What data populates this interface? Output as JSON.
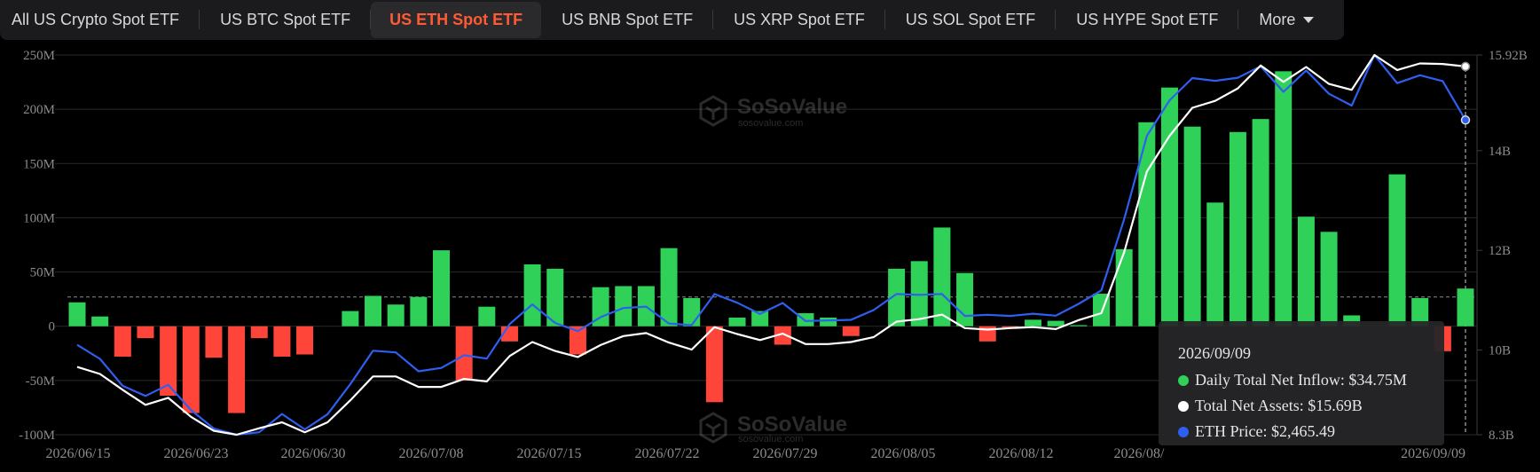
{
  "tabs": [
    {
      "label": "All US Crypto Spot ETF"
    },
    {
      "label": "US BTC Spot ETF"
    },
    {
      "label": "US ETH Spot ETF",
      "active": true
    },
    {
      "label": "US BNB Spot ETF"
    },
    {
      "label": "US XRP Spot ETF"
    },
    {
      "label": "US SOL Spot ETF"
    },
    {
      "label": "US HYPE Spot ETF"
    },
    {
      "label": "More",
      "icon": "chevron-down-icon"
    }
  ],
  "watermark": {
    "brand": "SoSoValue",
    "url": "sosovalue.com"
  },
  "colors": {
    "inflow": "#2fd159",
    "outflow": "#ff453a",
    "assets": "#ffffff",
    "price": "#2f5ff0"
  },
  "tooltip": {
    "date": "2026/09/09",
    "rows": [
      {
        "label": "Daily Total Net Inflow: $34.75M",
        "color": "#2fd159"
      },
      {
        "label": "Total Net Assets: $15.69B",
        "color": "#ffffff"
      },
      {
        "label": "ETH Price: $2,465.49",
        "color": "#2f5ff0"
      }
    ]
  },
  "chart_data": {
    "type": "bar",
    "x_tick_labels": [
      "2026/06/15",
      "2026/06/23",
      "2026/06/30",
      "2026/07/08",
      "2026/07/15",
      "2026/07/22",
      "2026/07/29",
      "2026/08/05",
      "2026/08/12",
      "2026/08/",
      "2026/09/09"
    ],
    "y_left_ticks": [
      "250M",
      "200M",
      "150M",
      "100M",
      "50M",
      "0",
      "-50M",
      "-100M"
    ],
    "y_right_ticks": [
      "15.92B",
      "14B",
      "12B",
      "10B",
      "8.3B"
    ],
    "ylim_left": [
      -100,
      250
    ],
    "ylim_right": [
      8.3,
      15.92
    ],
    "reference_value": 27,
    "series": [
      {
        "name": "Daily Total Net Inflow",
        "unit": "M",
        "values": [
          22,
          9,
          -28,
          -11,
          -64,
          -80,
          -29,
          -80,
          -11,
          -28,
          -26,
          0,
          14,
          28,
          20,
          27,
          70,
          -50,
          18,
          -14,
          57,
          53,
          -26,
          36,
          37,
          37,
          72,
          26,
          -70,
          8,
          14,
          -17,
          12,
          8,
          -9,
          0,
          53,
          60,
          91,
          49,
          -14,
          -1,
          6,
          5,
          1,
          30,
          71,
          188,
          220,
          184,
          114,
          179,
          191,
          235,
          101,
          87,
          10,
          0,
          140,
          26,
          -23,
          34.75
        ]
      },
      {
        "name": "Total Net Assets",
        "unit": "B",
        "values": [
          9.66,
          9.52,
          9.2,
          8.9,
          9.04,
          8.66,
          8.38,
          8.3,
          8.43,
          8.55,
          8.35,
          8.55,
          8.99,
          9.47,
          9.47,
          9.26,
          9.26,
          9.42,
          9.37,
          9.88,
          10.16,
          9.98,
          9.86,
          10.1,
          10.28,
          10.34,
          10.15,
          10.01,
          10.46,
          10.32,
          10.2,
          10.33,
          10.12,
          10.12,
          10.16,
          10.26,
          10.57,
          10.62,
          10.71,
          10.44,
          10.41,
          10.44,
          10.46,
          10.42,
          10.6,
          10.74,
          11.96,
          13.58,
          14.3,
          14.86,
          15.0,
          15.25,
          15.71,
          15.38,
          15.68,
          15.34,
          15.22,
          15.92,
          15.62,
          15.75,
          15.74,
          15.69
        ]
      },
      {
        "name": "ETH Price",
        "unit": "$",
        "values": [
          1665,
          1615,
          1519,
          1483,
          1523,
          1433,
          1367,
          1345,
          1354,
          1419,
          1364,
          1418,
          1525,
          1644,
          1638,
          1571,
          1583,
          1628,
          1616,
          1739,
          1809,
          1743,
          1714,
          1764,
          1796,
          1801,
          1741,
          1735,
          1846,
          1815,
          1775,
          1814,
          1750,
          1752,
          1754,
          1789,
          1846,
          1843,
          1846,
          1768,
          1772,
          1768,
          1776,
          1769,
          1811,
          1859,
          2112,
          2409,
          2536,
          2615,
          2605,
          2616,
          2657,
          2566,
          2642,
          2559,
          2517,
          2697,
          2597,
          2625,
          2604,
          2465.49
        ]
      }
    ]
  }
}
